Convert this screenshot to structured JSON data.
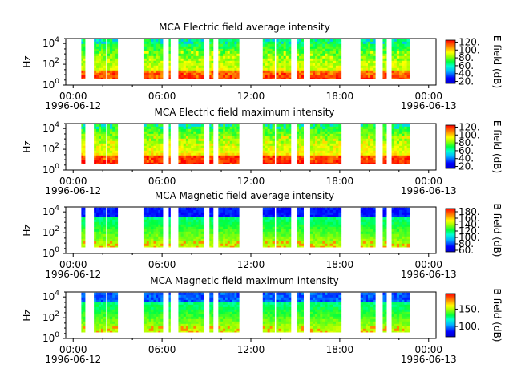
{
  "chart_data": [
    {
      "type": "heatmap",
      "title": "MCA  Electric field average intensity",
      "ylabel": "Hz",
      "y_scale": "log",
      "y_ticks": [
        {
          "exp": "0",
          "v": 1
        },
        {
          "exp": "2",
          "v": 100
        },
        {
          "exp": "4",
          "v": 10000
        }
      ],
      "ylim": [
        1,
        30000
      ],
      "x_ticks": [
        "00:00",
        "06:00",
        "12:00",
        "18:00",
        "00:00"
      ],
      "x_dates": [
        "1996-06-12",
        "1996-06-13"
      ],
      "colorbar": {
        "label": "E field (dB)",
        "range": [
          15,
          125
        ],
        "ticks": [
          "20.",
          "40.",
          "60.",
          "80.",
          "100.",
          "120."
        ],
        "tick_values": [
          20,
          40,
          60,
          80,
          100,
          120
        ]
      },
      "values_range_db": [
        30,
        110
      ]
    },
    {
      "type": "heatmap",
      "title": "MCA  Electric field maximum intensity",
      "ylabel": "Hz",
      "y_scale": "log",
      "y_ticks": [
        {
          "exp": "0",
          "v": 1
        },
        {
          "exp": "2",
          "v": 100
        },
        {
          "exp": "4",
          "v": 10000
        }
      ],
      "ylim": [
        1,
        30000
      ],
      "x_ticks": [
        "00:00",
        "06:00",
        "12:00",
        "18:00",
        "00:00"
      ],
      "x_dates": [
        "1996-06-12",
        "1996-06-13"
      ],
      "colorbar": {
        "label": "E field (dB)",
        "range": [
          15,
          125
        ],
        "ticks": [
          "20.",
          "40.",
          "60.",
          "80.",
          "100.",
          "120."
        ],
        "tick_values": [
          20,
          40,
          60,
          80,
          100,
          120
        ]
      },
      "values_range_db": [
        35,
        115
      ]
    },
    {
      "type": "heatmap",
      "title": "MCA  Magnetic field average intensity",
      "ylabel": "Hz",
      "y_scale": "log",
      "y_ticks": [
        {
          "exp": "0",
          "v": 1
        },
        {
          "exp": "2",
          "v": 100
        },
        {
          "exp": "4",
          "v": 10000
        }
      ],
      "ylim": [
        1,
        30000
      ],
      "x_ticks": [
        "00:00",
        "06:00",
        "12:00",
        "18:00",
        "00:00"
      ],
      "x_dates": [
        "1996-06-12",
        "1996-06-13"
      ],
      "colorbar": {
        "label": "B field (dB)",
        "range": [
          55,
          190
        ],
        "ticks": [
          "60.",
          "80.",
          "100.",
          "120.",
          "140.",
          "160.",
          "180."
        ],
        "tick_values": [
          60,
          80,
          100,
          120,
          140,
          160,
          180
        ]
      },
      "values_range_db": [
        60,
        175
      ]
    },
    {
      "type": "heatmap",
      "title": "MCA  Magnetic field maximum intensity",
      "ylabel": "Hz",
      "y_scale": "log",
      "y_ticks": [
        {
          "exp": "0",
          "v": 1
        },
        {
          "exp": "2",
          "v": 100
        },
        {
          "exp": "4",
          "v": 10000
        }
      ],
      "ylim": [
        1,
        30000
      ],
      "x_ticks": [
        "00:00",
        "06:00",
        "12:00",
        "18:00",
        "00:00"
      ],
      "x_dates": [
        "1996-06-12",
        "1996-06-13"
      ],
      "colorbar": {
        "label": "B field (dB)",
        "range": [
          70,
          195
        ],
        "ticks": [
          "100.",
          "150."
        ],
        "tick_values": [
          100,
          150
        ]
      },
      "values_range_db": [
        70,
        190
      ]
    }
  ],
  "data_intervals_hours": [
    [
      0.55,
      0.8
    ],
    [
      1.4,
      2.2
    ],
    [
      2.3,
      3.0
    ],
    [
      4.8,
      6.05
    ],
    [
      6.45,
      6.55
    ],
    [
      7.1,
      8.8
    ],
    [
      9.2,
      9.45
    ],
    [
      9.8,
      11.2
    ],
    [
      12.8,
      13.6
    ],
    [
      13.7,
      14.7
    ],
    [
      15.1,
      15.55
    ],
    [
      16.0,
      17.5
    ],
    [
      17.55,
      18.1
    ],
    [
      19.4,
      20.4
    ],
    [
      20.9,
      21.15
    ],
    [
      21.5,
      22.7
    ]
  ]
}
